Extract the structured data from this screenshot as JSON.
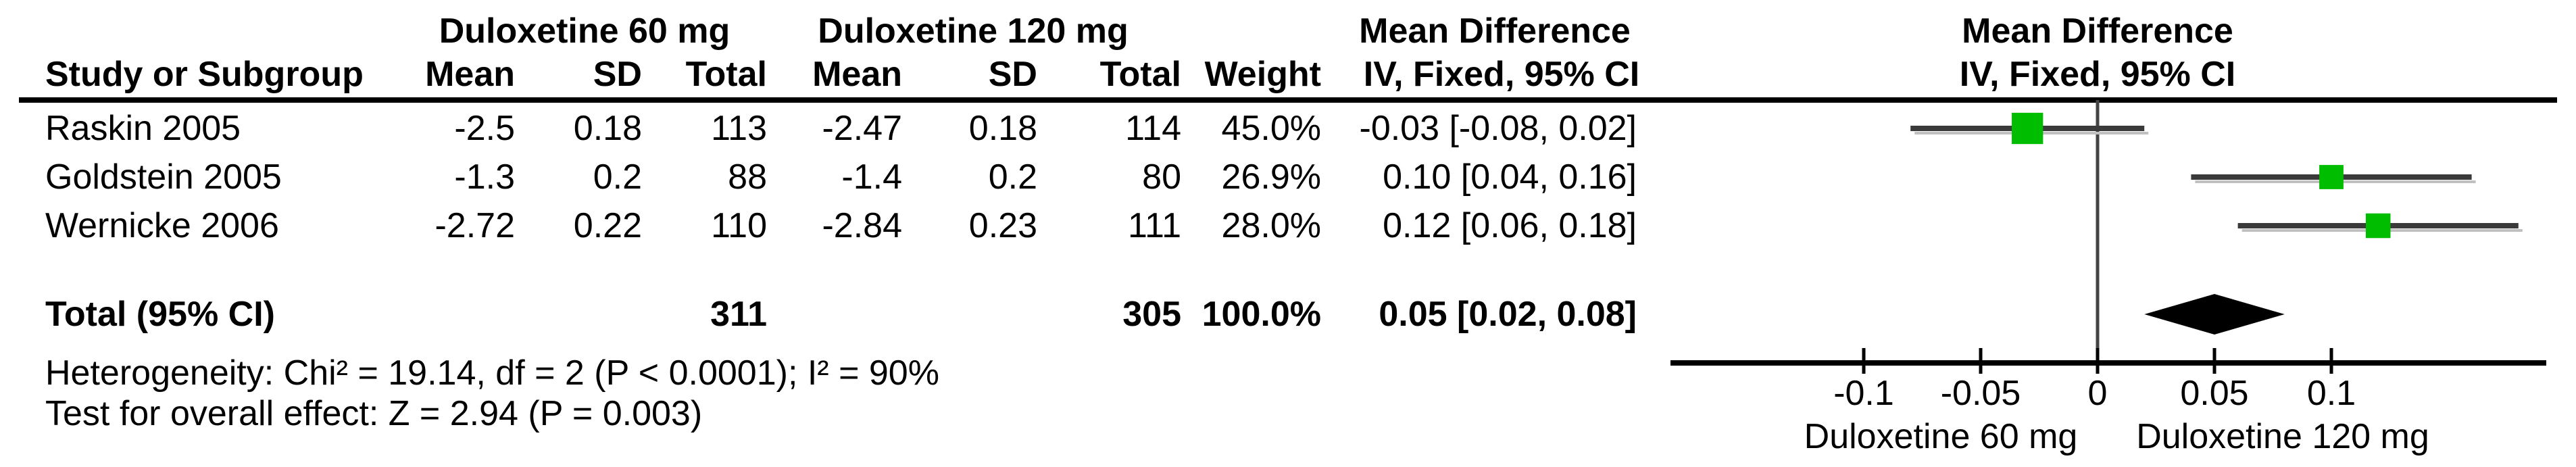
{
  "header": {
    "group1": "Duloxetine 60 mg",
    "group2": "Duloxetine 120 mg",
    "md_table_title": "Mean Difference",
    "md_plot_title": "Mean Difference",
    "study_col": "Study or Subgroup",
    "mean1": "Mean",
    "sd1": "SD",
    "total1": "Total",
    "mean2": "Mean",
    "sd2": "SD",
    "total2": "Total",
    "weight": "Weight",
    "iv_table": "IV, Fixed, 95% CI",
    "iv_plot": "IV, Fixed, 95% CI"
  },
  "rows": [
    {
      "study": "Raskin 2005",
      "mean1": "-2.5",
      "sd1": "0.18",
      "total1": "113",
      "mean2": "-2.47",
      "sd2": "0.18",
      "total2": "114",
      "weight": "45.0%",
      "ci": "-0.03 [-0.08, 0.02]"
    },
    {
      "study": "Goldstein 2005",
      "mean1": "-1.3",
      "sd1": "0.2",
      "total1": "88",
      "mean2": "-1.4",
      "sd2": "0.2",
      "total2": "80",
      "weight": "26.9%",
      "ci": "0.10 [0.04, 0.16]"
    },
    {
      "study": "Wernicke 2006",
      "mean1": "-2.72",
      "sd1": "0.22",
      "total1": "110",
      "mean2": "-2.84",
      "sd2": "0.23",
      "total2": "111",
      "weight": "28.0%",
      "ci": "0.12 [0.06, 0.18]"
    }
  ],
  "total_row": {
    "label": "Total (95% CI)",
    "total1": "311",
    "total2": "305",
    "weight": "100.0%",
    "ci": "0.05 [0.02, 0.08]"
  },
  "footnotes": {
    "heterogeneity": "Heterogeneity: Chi² = 19.14, df = 2 (P < 0.0001); I² = 90%",
    "overall_effect": "Test for overall effect: Z = 2.94 (P = 0.003)"
  },
  "chart_data": {
    "type": "forest",
    "effect_measure": "Mean Difference, IV, Fixed, 95% CI",
    "studies": [
      {
        "name": "Raskin 2005",
        "md": -0.03,
        "ci_low": -0.08,
        "ci_high": 0.02,
        "weight_pct": 45.0
      },
      {
        "name": "Goldstein 2005",
        "md": 0.1,
        "ci_low": 0.04,
        "ci_high": 0.16,
        "weight_pct": 26.9
      },
      {
        "name": "Wernicke 2006",
        "md": 0.12,
        "ci_low": 0.06,
        "ci_high": 0.18,
        "weight_pct": 28.0
      }
    ],
    "total": {
      "label": "Total (95% CI)",
      "md": 0.05,
      "ci_low": 0.02,
      "ci_high": 0.08
    },
    "x_axis": {
      "ticks": [
        -0.1,
        -0.05,
        0,
        0.05,
        0.1
      ],
      "tick_labels": [
        "-0.1",
        "-0.05",
        "0",
        "0.05",
        "0.1"
      ],
      "xlim": [
        -0.19,
        0.19
      ],
      "favours_left": "Duloxetine 60 mg",
      "favours_right": "Duloxetine 120 mg"
    },
    "colors": {
      "marker_green": "#00BD00",
      "ci_line": "#3a3a3a",
      "ci_line_shadow": "#c0c0c0",
      "diamond": "#000000",
      "zero_line": "#444444",
      "axis": "#000000"
    }
  }
}
